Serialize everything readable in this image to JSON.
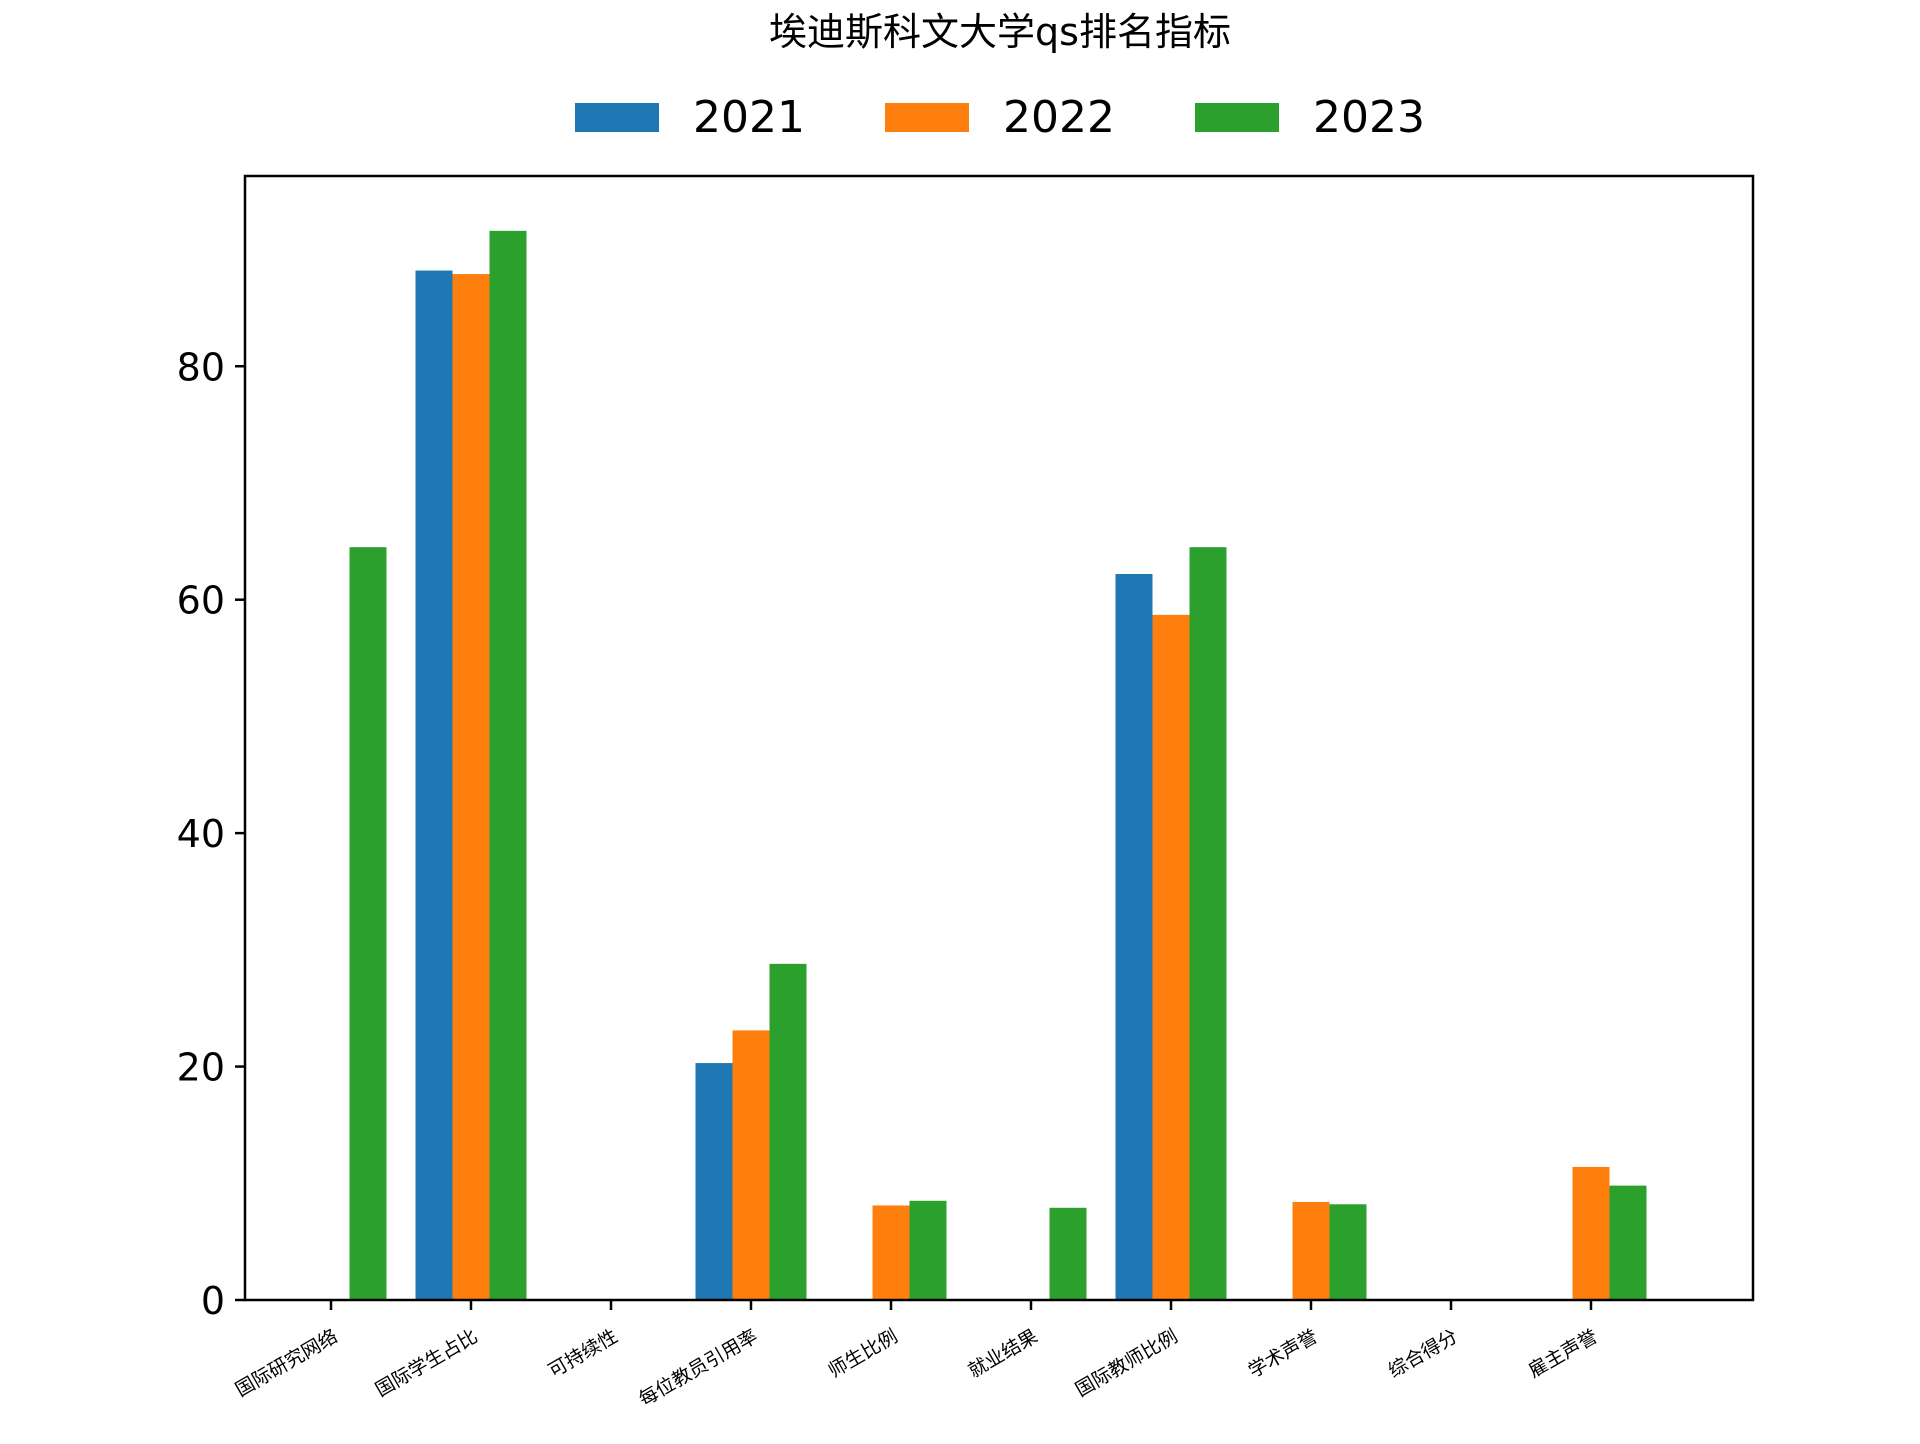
{
  "chart_data": {
    "type": "bar",
    "title": "埃迪斯科文大学qs排名指标",
    "xlabel": "",
    "ylabel": "",
    "categories": [
      "国际研究网络",
      "国际学生占比",
      "可持续性",
      "每位教员引用率",
      "师生比例",
      "就业结果",
      "国际教师比例",
      "学术声誉",
      "综合得分",
      "雇主声誉"
    ],
    "series": [
      {
        "name": "2021",
        "color": "#1f77b4",
        "values": [
          0,
          88.2,
          0,
          20.3,
          0,
          0,
          62.2,
          0,
          0,
          0
        ]
      },
      {
        "name": "2022",
        "color": "#ff7f0e",
        "values": [
          0,
          87.9,
          0,
          23.1,
          8.1,
          0,
          58.7,
          8.4,
          0,
          11.4
        ]
      },
      {
        "name": "2023",
        "color": "#2ca02c",
        "values": [
          64.5,
          91.6,
          0,
          28.8,
          8.5,
          7.9,
          64.5,
          8.2,
          0,
          9.8
        ]
      }
    ],
    "ylim": [
      0,
      96.3
    ],
    "yticks": [
      0,
      20,
      40,
      60,
      80
    ],
    "legend_position": "top-center",
    "grid": false
  }
}
